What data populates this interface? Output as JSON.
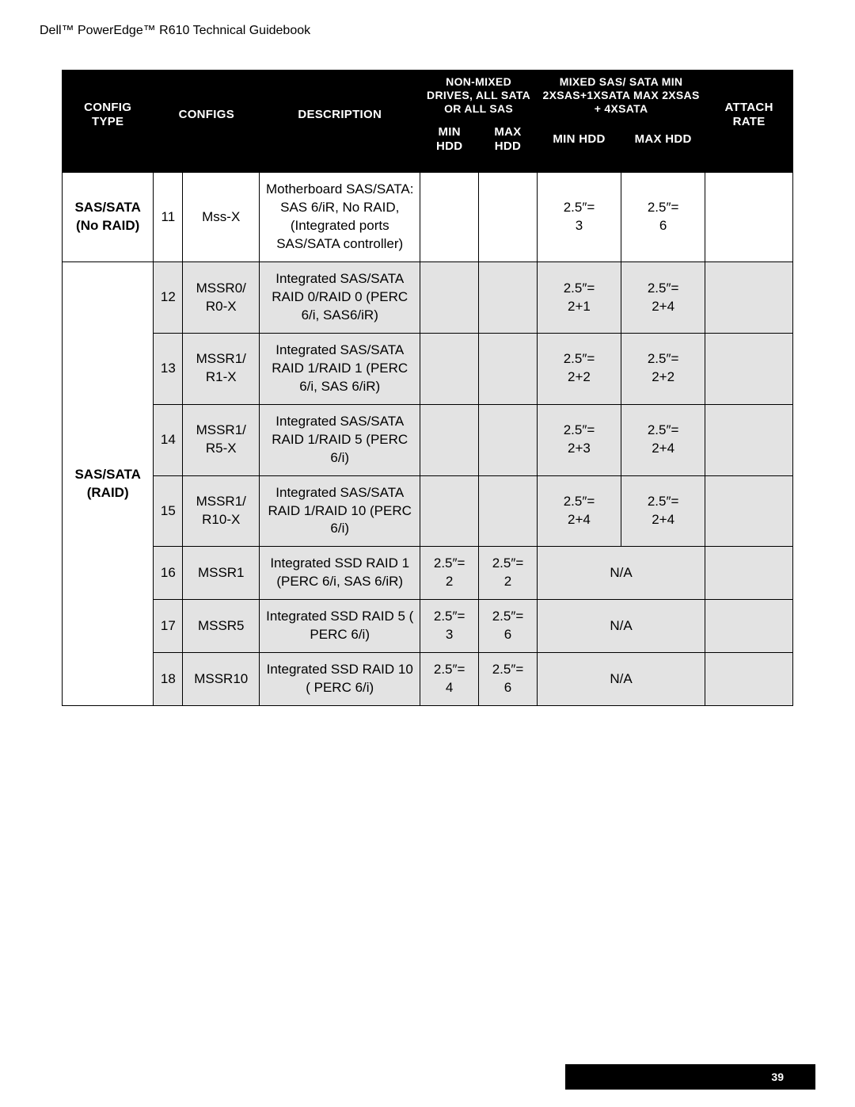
{
  "doc_title": "Dell™ PowerEdge™ R610 Technical Guidebook",
  "page_number": "39",
  "colors": {
    "header_bg": "#000000",
    "header_fg": "#ffffff",
    "row_shade": "#e3e3e3",
    "border": "#000000",
    "page_bg": "#ffffff"
  },
  "table": {
    "col_widths_pct": [
      12.5,
      4.0,
      10.5,
      22.0,
      8.0,
      8.0,
      11.5,
      11.5,
      12.0
    ],
    "header": {
      "config_type": "Config Type",
      "configs": "Configs",
      "description": "Description",
      "non_mixed": "Non-Mixed Drives, All SATA or All SAS",
      "mixed": "Mixed SAS/ SATA Min 2xSAS+1xSATA Max 2XSAS + 4XSATA",
      "attach_rate": "Attach Rate",
      "min_hdd": "Min HDD",
      "max_hdd": "Max HDD"
    },
    "groups": [
      {
        "config_type": "SAS/SATA\n(No RAID)",
        "shade": false,
        "rows": [
          {
            "num": "11",
            "config": "Mss-X",
            "desc": "Motherboard SAS/SATA: SAS 6/iR, No RAID, (Integrated ports SAS/SATA controller)",
            "nm_min": "",
            "nm_max": "",
            "mx_min": "2.5″=\n3",
            "mx_max": "2.5″=\n6",
            "mx_na": false,
            "attach": ""
          }
        ]
      },
      {
        "config_type": "SAS/SATA\n(RAID)",
        "shade": true,
        "rows": [
          {
            "num": "12",
            "config": "MSSR0/\nR0-X",
            "desc": "Integrated SAS/SATA RAID 0/RAID 0 (PERC 6/i, SAS6/iR)",
            "nm_min": "",
            "nm_max": "",
            "mx_min": "2.5″=\n2+1",
            "mx_max": "2.5″=\n2+4",
            "mx_na": false,
            "attach": ""
          },
          {
            "num": "13",
            "config": "MSSR1/\nR1-X",
            "desc": "Integrated SAS/SATA RAID 1/RAID 1 (PERC 6/i, SAS 6/iR)",
            "nm_min": "",
            "nm_max": "",
            "mx_min": "2.5″=\n2+2",
            "mx_max": "2.5″=\n2+2",
            "mx_na": false,
            "attach": ""
          },
          {
            "num": "14",
            "config": "MSSR1/\nR5-X",
            "desc": "Integrated SAS/SATA RAID 1/RAID 5 (PERC 6/i)",
            "nm_min": "",
            "nm_max": "",
            "mx_min": "2.5″=\n2+3",
            "mx_max": "2.5″=\n2+4",
            "mx_na": false,
            "attach": ""
          },
          {
            "num": "15",
            "config": "MSSR1/\nR10-X",
            "desc": "Integrated SAS/SATA RAID 1/RAID 10 (PERC 6/i)",
            "nm_min": "",
            "nm_max": "",
            "mx_min": "2.5″=\n2+4",
            "mx_max": "2.5″=\n2+4",
            "mx_na": false,
            "attach": ""
          },
          {
            "num": "16",
            "config": "MSSR1",
            "desc": "Integrated SSD RAID 1 (PERC 6/i, SAS 6/iR)",
            "nm_min": "2.5″=\n2",
            "nm_max": "2.5″=\n2",
            "mx_min": "",
            "mx_max": "",
            "mx_na": true,
            "mx_na_text": "N/A",
            "attach": ""
          },
          {
            "num": "17",
            "config": "MSSR5",
            "desc": "Integrated SSD RAID 5 ( PERC 6/i)",
            "nm_min": "2.5″=\n3",
            "nm_max": "2.5″=\n6",
            "mx_min": "",
            "mx_max": "",
            "mx_na": true,
            "mx_na_text": "N/A",
            "attach": ""
          },
          {
            "num": "18",
            "config": "MSSR10",
            "desc": "Integrated SSD RAID 10 ( PERC 6/i)",
            "nm_min": "2.5″=\n4",
            "nm_max": "2.5″=\n6",
            "mx_min": "",
            "mx_max": "",
            "mx_na": true,
            "mx_na_text": "N/A",
            "attach": ""
          }
        ]
      }
    ]
  }
}
